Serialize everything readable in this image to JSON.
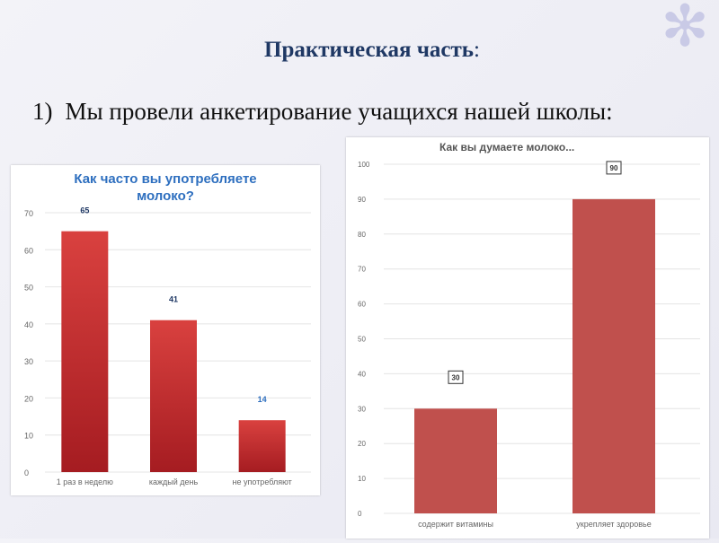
{
  "slide": {
    "title": "Практическая часть",
    "title_colon": ":",
    "intro_number": "1)",
    "intro_text": "Мы провели анкетирование учащихся нашей школы:",
    "decor_icon": "asterisk-flower-icon"
  },
  "colors": {
    "title": "#1f3864",
    "bar_gradient_top": "#d9413f",
    "bar_gradient_bottom": "#a51c21",
    "bar_flat": "#c0504d",
    "chart1_title": "#2e6fbf",
    "chart2_title": "#555555",
    "grid": "#e4e4e4",
    "axis_text": "#666666",
    "label_text": "#1f3864"
  },
  "chart_data": [
    {
      "type": "bar",
      "title": "Как часто вы употребляете молоко?",
      "categories": [
        "1 раз в неделю",
        "каждый день",
        "не употребляют"
      ],
      "values": [
        65,
        41,
        14
      ],
      "data_labels": [
        "65",
        "41",
        "14"
      ],
      "ylim": [
        0,
        70
      ],
      "yticks": [
        0,
        10,
        20,
        30,
        40,
        50,
        60,
        70
      ],
      "ytick_labels": [
        "0",
        "10",
        "20",
        "30",
        "40",
        "50",
        "60",
        "70"
      ],
      "grid": true,
      "legend": "none"
    },
    {
      "type": "bar",
      "title": "Как вы думаете молоко...",
      "categories": [
        "содержит витамины",
        "укрепляет здоровье"
      ],
      "values": [
        30,
        90
      ],
      "data_labels": [
        "30",
        "90"
      ],
      "ylim": [
        0,
        100
      ],
      "yticks": [
        0,
        10,
        20,
        30,
        40,
        50,
        60,
        70,
        80,
        90,
        100
      ],
      "ytick_labels": [
        "0",
        "10",
        "20",
        "30",
        "40",
        "50",
        "60",
        "70",
        "80",
        "90",
        "100"
      ],
      "grid": true,
      "legend": "none"
    }
  ]
}
